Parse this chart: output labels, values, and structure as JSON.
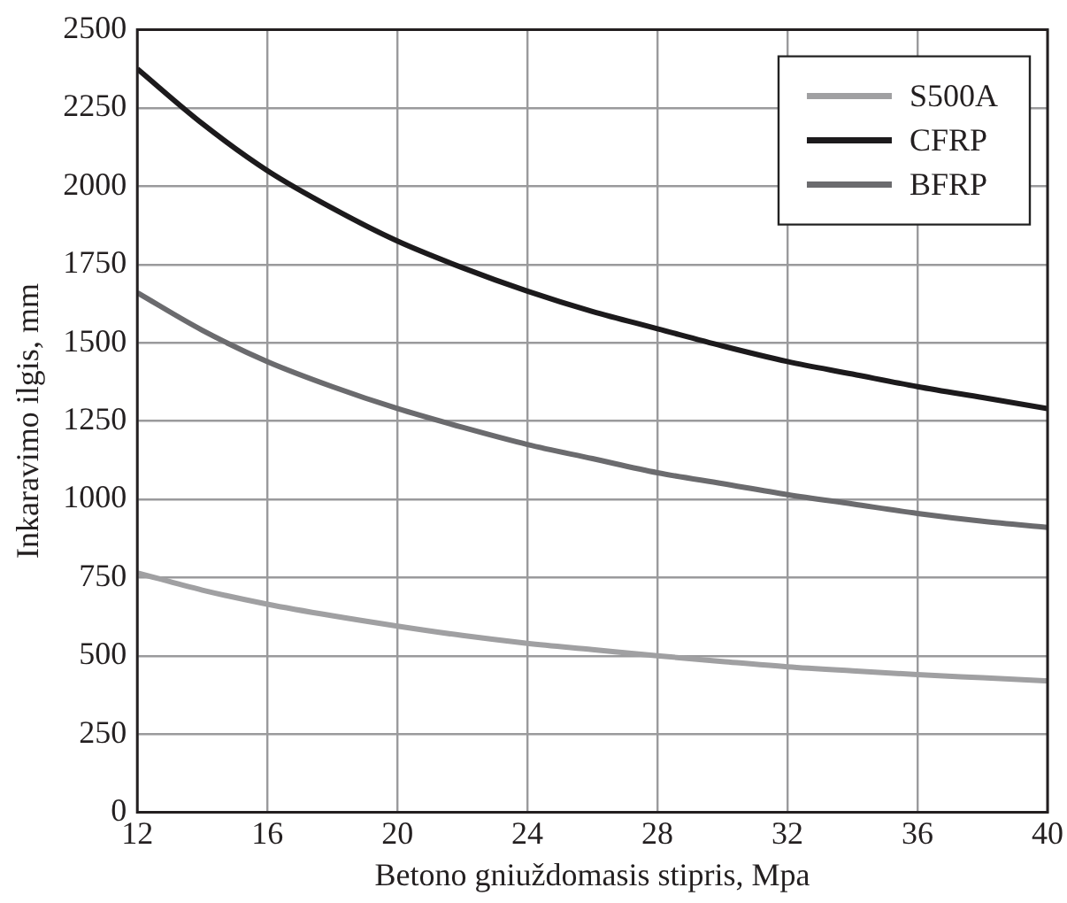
{
  "chart_data": {
    "type": "line",
    "xlabel": "Betono gniuždomasis stipris, Mpa",
    "ylabel": "Inkaravimo ilgis, mm",
    "x": [
      12,
      14,
      16,
      18,
      20,
      22,
      24,
      26,
      28,
      30,
      32,
      34,
      36,
      38,
      40
    ],
    "series": [
      {
        "name": "S500A",
        "color": "#a0a0a2",
        "values": [
          765,
          710,
          665,
          628,
          595,
          565,
          540,
          520,
          500,
          482,
          465,
          452,
          440,
          430,
          420
        ]
      },
      {
        "name": "CFRP",
        "color": "#1c1a1c",
        "values": [
          2375,
          2200,
          2050,
          1930,
          1825,
          1740,
          1665,
          1600,
          1545,
          1490,
          1440,
          1400,
          1360,
          1325,
          1290
        ]
      },
      {
        "name": "BFRP",
        "color": "#6b6b6e",
        "values": [
          1660,
          1540,
          1440,
          1360,
          1290,
          1230,
          1175,
          1130,
          1085,
          1050,
          1015,
          985,
          955,
          930,
          910
        ]
      }
    ],
    "xlim": [
      12,
      40
    ],
    "xticks": [
      12,
      16,
      20,
      24,
      28,
      32,
      36,
      40
    ],
    "ylim": [
      0,
      2500
    ],
    "yticks": [
      0,
      250,
      500,
      750,
      1000,
      1250,
      1500,
      1750,
      2000,
      2250,
      2500
    ],
    "grid": true,
    "legend": "top right",
    "marker": "none",
    "line_style": "solid"
  }
}
